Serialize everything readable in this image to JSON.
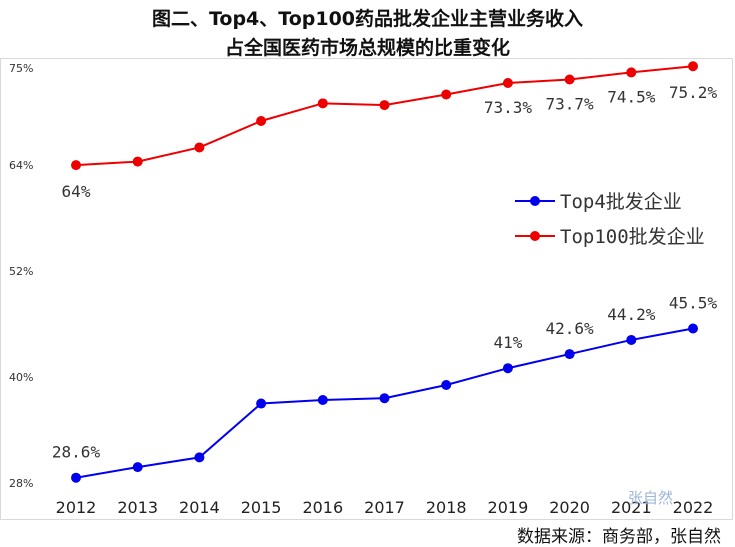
{
  "chart_data": {
    "type": "line",
    "title": "图二、Top4、Top100药品批发企业主营业务收入",
    "subtitle": "占全国医药市场总规模的比重变化",
    "x": [
      "2012",
      "2013",
      "2014",
      "2015",
      "2016",
      "2017",
      "2018",
      "2019",
      "2020",
      "2021",
      "2022"
    ],
    "y_ticks": [
      "28%",
      "40%",
      "52%",
      "64%",
      "75%"
    ],
    "ylim": [
      28,
      75
    ],
    "grid": false,
    "legend_position": "center-right",
    "series": [
      {
        "name": "Top4批发企业",
        "color": "#0000ee",
        "values": [
          28.6,
          29.8,
          30.9,
          37.0,
          37.4,
          37.6,
          39.1,
          41.0,
          42.6,
          44.2,
          45.5
        ],
        "labels": [
          "28.6%",
          "",
          "",
          "",
          "",
          "",
          "",
          "41%",
          "42.6%",
          "44.2%",
          "45.5%"
        ]
      },
      {
        "name": "Top100批发企业",
        "color": "#ee0000",
        "values": [
          64.0,
          64.4,
          66.0,
          69.0,
          71.0,
          70.8,
          72.0,
          73.3,
          73.7,
          74.5,
          75.2
        ],
        "labels": [
          "64%",
          "",
          "",
          "",
          "",
          "",
          "",
          "73.3%",
          "73.7%",
          "74.5%",
          "75.2%"
        ]
      }
    ]
  },
  "source_text": "数据来源：商务部，张自然",
  "watermark_text": "张自然"
}
